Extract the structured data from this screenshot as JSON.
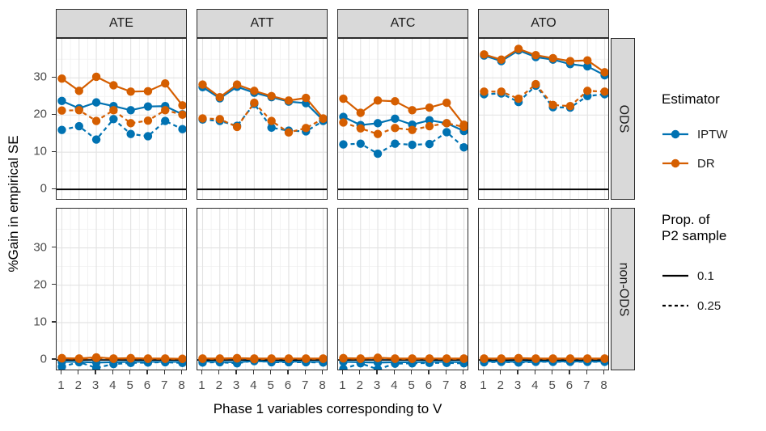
{
  "legend": {
    "estimator": {
      "title": "Estimator",
      "items": [
        {
          "label": "IPTW",
          "color": "#0072B2"
        },
        {
          "label": "DR",
          "color": "#D55E00"
        }
      ]
    },
    "proportion": {
      "title_line1": "Prop. of",
      "title_line2": "P2 sample",
      "items": [
        {
          "label": "0.1",
          "dash": "solid"
        },
        {
          "label": "0.25",
          "dash": "dashed"
        }
      ]
    }
  },
  "chart_data": {
    "type": "line",
    "title": "",
    "xlabel": "Phase 1 variables corresponding to V",
    "ylabel": "%Gain in empirical SE",
    "x": [
      1,
      2,
      3,
      4,
      5,
      6,
      7,
      8
    ],
    "yticks": [
      0,
      10,
      20,
      30
    ],
    "ylim": [
      -3,
      40.5
    ],
    "grid": true,
    "zero_line_color": "#000000",
    "strip_background": "#d9d9d9",
    "facet_columns": [
      "ATE",
      "ATT",
      "ATC",
      "ATO"
    ],
    "facet_rows": [
      "ODS",
      "non-ODS"
    ],
    "series_styles": [
      {
        "id": "IPTW_01",
        "estimator": "IPTW",
        "prop": "0.1",
        "color": "#0072B2",
        "dashed": false
      },
      {
        "id": "IPTW_25",
        "estimator": "IPTW",
        "prop": "0.25",
        "color": "#0072B2",
        "dashed": true
      },
      {
        "id": "DR_01",
        "estimator": "DR",
        "prop": "0.1",
        "color": "#D55E00",
        "dashed": false
      },
      {
        "id": "DR_25",
        "estimator": "DR",
        "prop": "0.25",
        "color": "#D55E00",
        "dashed": true
      }
    ],
    "panels": [
      {
        "col": "ATE",
        "row": "ODS",
        "series": {
          "IPTW_01": [
            23.8,
            21.8,
            23.4,
            22.4,
            21.3,
            22.3,
            22.4,
            20.2
          ],
          "IPTW_25": [
            16.0,
            17.0,
            13.4,
            18.9,
            14.9,
            14.3,
            18.4,
            16.2
          ],
          "DR_01": [
            29.8,
            26.5,
            30.3,
            28.0,
            26.3,
            26.4,
            28.5,
            22.6
          ],
          "DR_25": [
            21.2,
            21.3,
            18.4,
            21.3,
            17.8,
            18.5,
            21.3,
            20.1
          ]
        }
      },
      {
        "col": "ATT",
        "row": "ODS",
        "series": {
          "IPTW_01": [
            27.5,
            24.5,
            27.6,
            26.0,
            24.8,
            23.6,
            23.2,
            18.6
          ],
          "IPTW_25": [
            18.8,
            18.4,
            17.1,
            23.0,
            16.6,
            15.8,
            15.6,
            18.4
          ],
          "DR_01": [
            28.2,
            24.8,
            28.2,
            26.5,
            25.1,
            23.9,
            24.6,
            19.1
          ],
          "DR_25": [
            19.1,
            18.9,
            16.8,
            23.3,
            18.4,
            15.3,
            16.5,
            19.0
          ]
        }
      },
      {
        "col": "ATC",
        "row": "ODS",
        "series": {
          "IPTW_01": [
            19.5,
            17.3,
            17.8,
            19.0,
            17.4,
            18.6,
            17.8,
            15.7
          ],
          "IPTW_25": [
            12.1,
            12.3,
            9.6,
            12.3,
            12.0,
            12.2,
            15.4,
            11.3
          ],
          "DR_01": [
            24.4,
            20.6,
            23.9,
            23.7,
            21.3,
            22.0,
            23.3,
            17.4
          ],
          "DR_25": [
            18.0,
            16.4,
            14.9,
            16.5,
            16.0,
            17.0,
            17.8,
            16.8
          ]
        }
      },
      {
        "col": "ATO",
        "row": "ODS",
        "series": {
          "IPTW_01": [
            36.0,
            34.5,
            37.4,
            35.6,
            34.9,
            33.7,
            33.1,
            30.7
          ],
          "IPTW_25": [
            25.6,
            25.8,
            23.5,
            27.9,
            22.1,
            22.0,
            25.1,
            25.6
          ],
          "DR_01": [
            36.3,
            34.9,
            37.8,
            36.1,
            35.3,
            34.5,
            34.7,
            31.5
          ],
          "DR_25": [
            26.3,
            26.3,
            24.4,
            28.3,
            22.7,
            22.4,
            26.5,
            26.3
          ]
        }
      },
      {
        "col": "ATE",
        "row": "non-ODS",
        "series": {
          "IPTW_01": [
            -0.5,
            -0.5,
            -0.7,
            -0.6,
            -0.5,
            -0.5,
            -0.5,
            -0.5
          ],
          "IPTW_25": [
            -1.8,
            -0.6,
            -2.1,
            -1.1,
            -0.8,
            -0.7,
            -0.6,
            -0.8
          ],
          "DR_01": [
            0.5,
            0.4,
            0.7,
            0.4,
            0.5,
            0.4,
            0.4,
            0.3
          ],
          "DR_25": [
            0.4,
            0.3,
            0.5,
            0.3,
            0.4,
            0.3,
            0.3,
            0.3
          ]
        }
      },
      {
        "col": "ATT",
        "row": "non-ODS",
        "series": {
          "IPTW_01": [
            -0.4,
            -0.5,
            -0.6,
            -0.3,
            -0.5,
            -0.4,
            -0.5,
            -0.5
          ],
          "IPTW_25": [
            -0.7,
            -0.6,
            -0.9,
            -0.2,
            -0.6,
            -0.6,
            -0.6,
            -0.7
          ],
          "DR_01": [
            0.4,
            0.4,
            0.5,
            0.4,
            0.4,
            0.4,
            0.4,
            0.4
          ],
          "DR_25": [
            0.3,
            0.3,
            0.4,
            0.2,
            0.3,
            0.3,
            0.3,
            0.3
          ]
        }
      },
      {
        "col": "ATC",
        "row": "non-ODS",
        "series": {
          "IPTW_01": [
            -0.5,
            -0.6,
            -0.7,
            -0.6,
            -0.6,
            -0.5,
            -0.5,
            -0.6
          ],
          "IPTW_25": [
            -2.4,
            -0.9,
            -2.5,
            -1.0,
            -0.9,
            -0.8,
            -0.8,
            -0.9
          ],
          "DR_01": [
            0.5,
            0.4,
            0.6,
            0.4,
            0.4,
            0.4,
            0.4,
            0.4
          ],
          "DR_25": [
            0.4,
            0.3,
            0.5,
            0.3,
            0.3,
            0.3,
            0.3,
            0.3
          ]
        }
      },
      {
        "col": "ATO",
        "row": "non-ODS",
        "series": {
          "IPTW_01": [
            -0.4,
            -0.4,
            -0.5,
            -0.4,
            -0.4,
            -0.4,
            -0.4,
            -0.4
          ],
          "IPTW_25": [
            -0.6,
            -0.5,
            -0.7,
            -0.5,
            -0.5,
            -0.5,
            -0.5,
            -0.5
          ],
          "DR_01": [
            0.4,
            0.4,
            0.5,
            0.4,
            0.4,
            0.4,
            0.4,
            0.4
          ],
          "DR_25": [
            0.3,
            0.3,
            0.4,
            0.3,
            0.3,
            0.3,
            0.3,
            0.3
          ]
        }
      }
    ]
  }
}
